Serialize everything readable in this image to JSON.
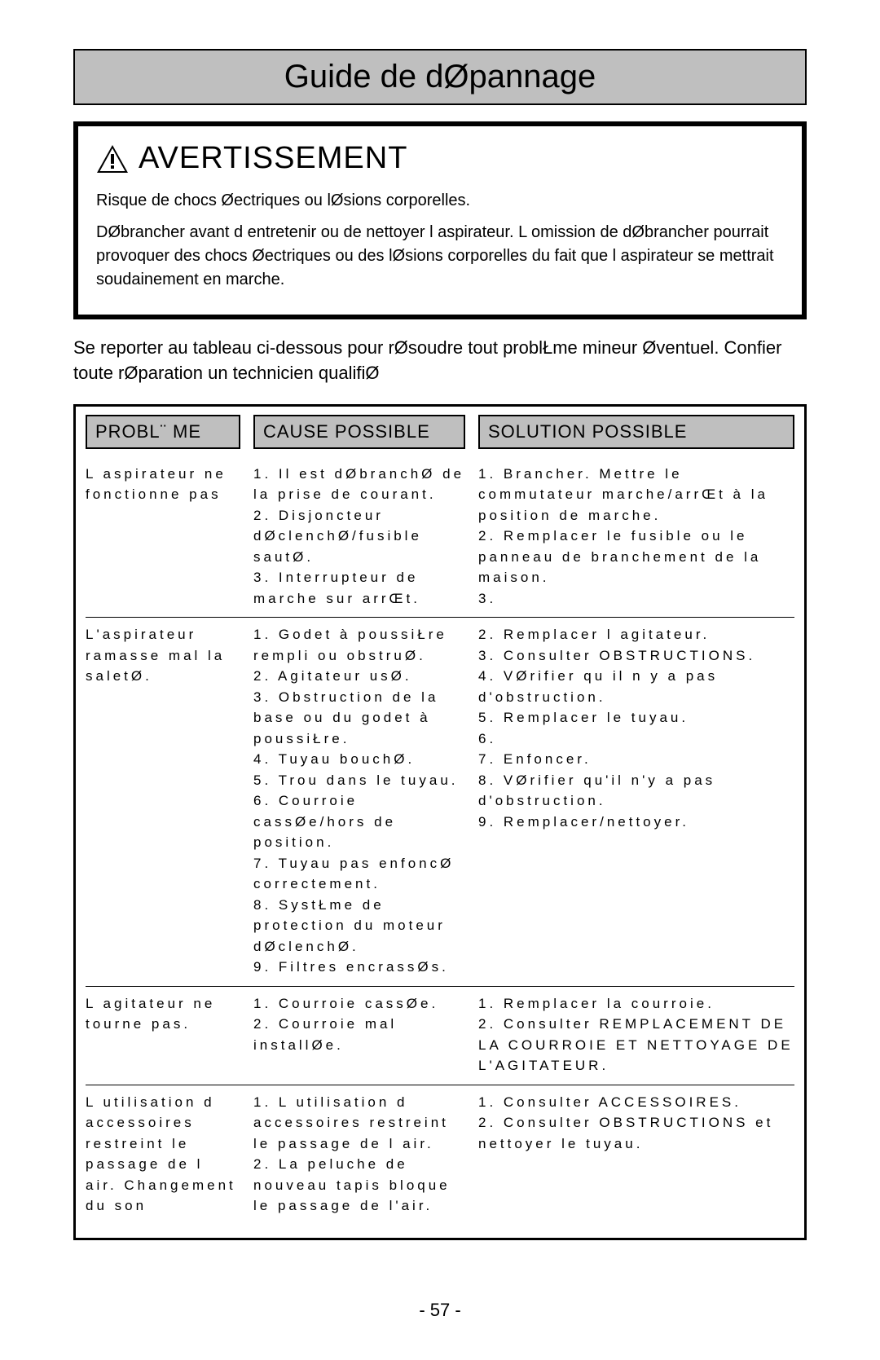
{
  "page": {
    "title": "Guide de dØpannage",
    "page_number": "- 57 -"
  },
  "warning": {
    "heading": "AVERTISSEMENT",
    "line1": "Risque de chocs Øectriques ou lØsions corporelles.",
    "line2": "DØbrancher avant d entretenir ou de nettoyer l aspirateur. L omission de dØbrancher pourrait provoquer des chocs Øectriques ou des lØsions corporelles du fait que l aspirateur se mettrait soudainement en marche."
  },
  "intro": "Se reporter au tableau ci-dessous pour rØsoudre tout problŁme mineur Øventuel. Confier toute rØparation   un technicien qualifiØ",
  "table": {
    "headers": {
      "problem": "PROBL¨ ME",
      "cause": "CAUSE POSSIBLE",
      "solution": "SOLUTION POSSIBLE"
    },
    "rows": [
      {
        "problem": "L aspirateur ne fonctionne pas",
        "cause": "1. Il est dØbranchØ de la prise de courant.\n2. Disjoncteur dØclenchØ/fusible sautØ.\n3. Interrupteur de marche sur arrŒt.",
        "solution": "1. Brancher. Mettre le commutateur marche/arrŒt à la position de marche.\n2. Remplacer le fusible ou le panneau de branchement de la maison.\n3."
      },
      {
        "problem": "L'aspirateur ramasse mal la saletØ.",
        "cause": "1. Godet à poussiŁre rempli ou obstruØ.\n2. Agitateur usØ.\n3. Obstruction de la base ou du godet à poussiŁre.\n4. Tuyau bouchØ.\n5. Trou dans le tuyau.\n6. Courroie cassØe/hors de position.\n7. Tuyau pas enfoncØ correctement.\n8. SystŁme de protection du moteur dØclenchØ.\n9. Filtres encrassØs.",
        "solution": "2. Remplacer l agitateur.\n3. Consulter OBSTRUCTIONS.\n4. VØrifier qu il n y a pas d'obstruction.\n5. Remplacer le tuyau.\n6.\n7. Enfoncer.\n8. VØrifier qu'il n'y a pas d'obstruction.\n9. Remplacer/nettoyer."
      },
      {
        "problem": "L agitateur ne tourne pas.",
        "cause": "1. Courroie cassØe.\n2. Courroie mal installØe.",
        "solution": "1. Remplacer la courroie.\n2. Consulter REMPLACEMENT DE LA COURROIE ET NETTOYAGE DE L'AGITATEUR."
      },
      {
        "problem": "L utilisation d accessoires restreint le passage de l air. Changement du son",
        "cause": "1. L utilisation d accessoires restreint le passage de l air.\n2. La peluche de nouveau tapis bloque le passage de l'air.",
        "solution": "1. Consulter ACCESSOIRES.\n2. Consulter OBSTRUCTIONS et nettoyer le tuyau."
      }
    ]
  },
  "colors": {
    "header_bg": "#bfbfbf",
    "border": "#000000",
    "bg": "#ffffff",
    "text": "#000000"
  }
}
